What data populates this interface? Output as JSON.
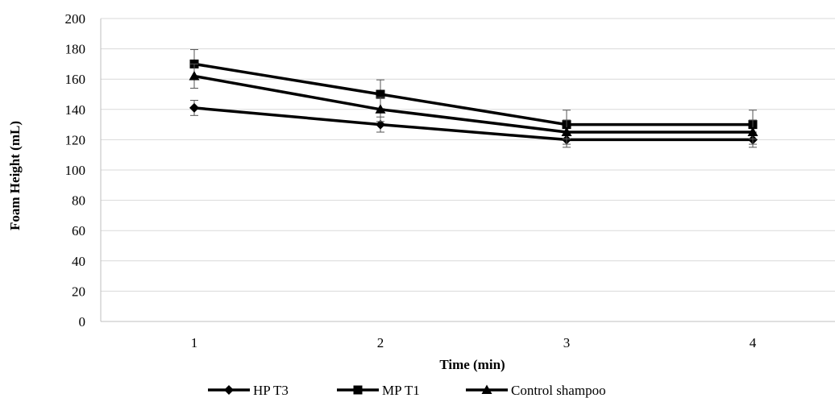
{
  "chart_data": {
    "type": "line",
    "title": "",
    "xlabel": "Time (min)",
    "ylabel": "Foam Height (mL)",
    "categories": [
      "1",
      "2",
      "3",
      "4"
    ],
    "ylim": [
      0,
      200
    ],
    "yticks": [
      0,
      20,
      40,
      60,
      80,
      100,
      120,
      140,
      160,
      180,
      200
    ],
    "grid": true,
    "legend_position": "bottom",
    "series": [
      {
        "name": "HP T3",
        "marker": "diamond",
        "color": "#000000",
        "values": [
          141,
          130,
          120,
          120
        ],
        "errors": [
          5,
          5,
          5,
          5
        ]
      },
      {
        "name": "MP T1",
        "marker": "square",
        "color": "#000000",
        "values": [
          170,
          150,
          130,
          130
        ],
        "errors": [
          9.5,
          9.5,
          9.5,
          9.5
        ]
      },
      {
        "name": "Control shampoo",
        "marker": "triangle",
        "color": "#000000",
        "values": [
          162,
          140,
          125,
          125
        ],
        "errors": [
          8,
          8,
          8,
          8
        ]
      }
    ]
  }
}
